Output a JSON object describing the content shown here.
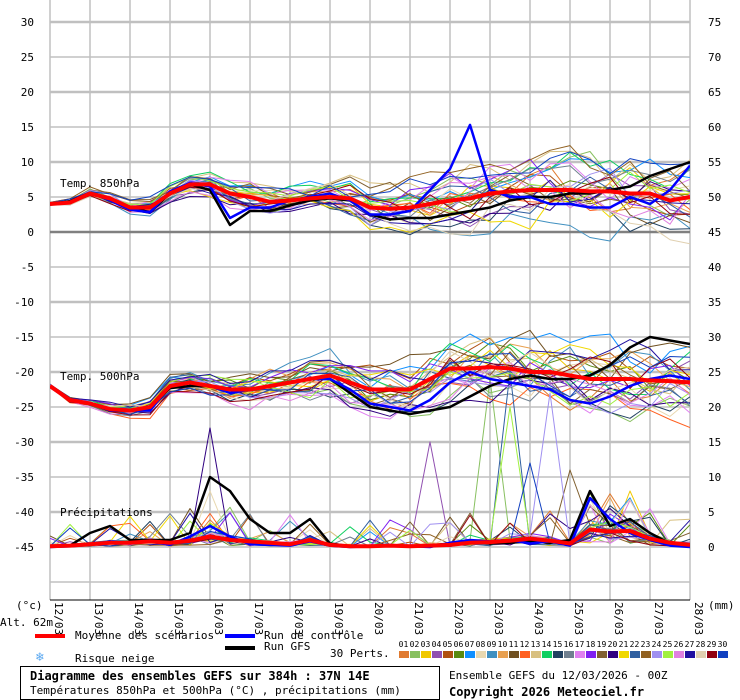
{
  "chart_data": {
    "type": "line",
    "title": "Diagramme des ensembles GEFS sur 384h : 37N 14E",
    "subtitle": "Températures 850hPa et 500hPa (°C) , précipitations (mm)",
    "run_info": "Ensemble GEFS du 12/03/2026 - 00Z",
    "copyright": "Copyright 2026 Meteociel.fr",
    "altitude": "Alt. 62m",
    "ylabel_left": "(°c)",
    "ylabel_right": "(mm)",
    "x_ticks": [
      "12/03",
      "13/03",
      "14/03",
      "15/03",
      "16/03",
      "17/03",
      "18/03",
      "19/03",
      "20/03",
      "21/03",
      "22/03",
      "23/03",
      "24/03",
      "25/03",
      "26/03",
      "27/03",
      "28/03"
    ],
    "x_step_days": 0.5,
    "y_left_ticks": [
      "30",
      "25",
      "20",
      "15",
      "10",
      "5",
      "0",
      "-5",
      "-10",
      "-15",
      "-20",
      "-25",
      "-30",
      "-35",
      "-40",
      "-45"
    ],
    "y_right_ticks": [
      "75",
      "70",
      "65",
      "60",
      "55",
      "50",
      "45",
      "40",
      "35",
      "30",
      "25",
      "20",
      "15",
      "10",
      "5",
      "0"
    ],
    "ylim_left": [
      -45,
      30
    ],
    "ylim_right": [
      0,
      75
    ],
    "section_labels": {
      "t850": "Temp. 850hPa",
      "t500": "Temp. 500hPa",
      "precip": "Précipitations"
    },
    "legend": {
      "mean": "Moyenne des scénarios",
      "control": "Run de contrôle",
      "gfs": "Run GFS",
      "snow": "Risque neige",
      "perts": "30 Perts."
    },
    "colors": {
      "mean": "#ff0000",
      "control": "#0000ff",
      "gfs": "#000000",
      "snow": "#5aa8f0"
    },
    "series": {
      "t850_mean": [
        4,
        4.2,
        5.5,
        4.8,
        3.5,
        3.5,
        5.5,
        6.8,
        6.8,
        5.5,
        5,
        4.3,
        4.5,
        4.8,
        5,
        4.8,
        3.5,
        3.3,
        3.5,
        4,
        4.5,
        4.8,
        5.5,
        5.8,
        6,
        6,
        6,
        5.8,
        5.8,
        5.5,
        5.5,
        4.5,
        5
      ],
      "t850_control": [
        4,
        4.3,
        5.6,
        4.5,
        3.2,
        2.8,
        5.8,
        7,
        6.5,
        2,
        3.5,
        3.5,
        4.5,
        5,
        5.5,
        4.5,
        2.5,
        2.5,
        3,
        6,
        9,
        15.3,
        6,
        5,
        5,
        4,
        4,
        3.5,
        3.5,
        5,
        4,
        6,
        9.5
      ],
      "t850_gfs": [
        4,
        4.4,
        5.6,
        4.5,
        3.5,
        2.8,
        5.5,
        6.8,
        6,
        1,
        3,
        3,
        3.8,
        4.5,
        4.8,
        4.5,
        2.5,
        1.8,
        2,
        2,
        2.5,
        3,
        3.5,
        4.5,
        5,
        5,
        5.5,
        5.5,
        6,
        6.5,
        8,
        9,
        10
      ],
      "t500_mean": [
        -22,
        -24,
        -24.5,
        -25.3,
        -25.5,
        -25,
        -22,
        -21.5,
        -22,
        -22.5,
        -22.5,
        -22,
        -21.5,
        -21,
        -20.5,
        -21.5,
        -22.5,
        -22.5,
        -22.5,
        -21,
        -19.5,
        -19.5,
        -19.3,
        -19.5,
        -20,
        -20,
        -20.5,
        -21,
        -21,
        -21,
        -21.2,
        -21.3,
        -21.5
      ],
      "t500_control": [
        -22,
        -24,
        -24.5,
        -25.5,
        -25.5,
        -25.5,
        -22,
        -21.5,
        -22,
        -23,
        -22.5,
        -22,
        -21.5,
        -21,
        -21,
        -22.5,
        -24.5,
        -25,
        -25.5,
        -24,
        -21.5,
        -20,
        -21,
        -21.5,
        -22,
        -22.5,
        -24,
        -24.5,
        -23.5,
        -22,
        -21,
        -20.5,
        -21
      ],
      "t500_gfs": [
        -22,
        -24,
        -24.5,
        -25.5,
        -25.5,
        -25.2,
        -22.3,
        -22,
        -22,
        -22.5,
        -22.5,
        -22,
        -21.5,
        -21,
        -21,
        -23,
        -25,
        -25.5,
        -26,
        -25.5,
        -25,
        -23.5,
        -22,
        -21,
        -20.5,
        -21,
        -21,
        -20.5,
        -19,
        -16.5,
        -15,
        -15.5,
        -16
      ],
      "precip_mean": [
        0.1,
        0.2,
        0.4,
        0.6,
        0.6,
        0.8,
        0.6,
        0.9,
        1.5,
        1,
        0.8,
        0.6,
        0.4,
        1,
        0.3,
        0.1,
        0.1,
        0.2,
        0.1,
        0.2,
        0.3,
        0.6,
        0.7,
        0.9,
        1.2,
        0.9,
        0.5,
        2.5,
        2.2,
        2.3,
        1.2,
        0.6,
        0.3
      ],
      "precip_control": [
        0,
        0.1,
        0.3,
        0.8,
        0.5,
        0.8,
        0.3,
        1.5,
        3,
        1.5,
        0.4,
        0.3,
        0.2,
        0.8,
        0.2,
        0,
        0.1,
        0.3,
        0.1,
        0,
        0.6,
        1,
        0.8,
        1,
        0.5,
        0.8,
        0.2,
        7,
        4,
        2,
        1,
        0.2,
        0
      ],
      "precip_gfs": [
        0.1,
        0.2,
        2,
        3,
        1,
        1,
        1,
        2,
        10,
        8,
        4,
        2,
        2,
        4,
        0.5,
        0.1,
        0.1,
        0.2,
        0.1,
        0.2,
        0.5,
        0.8,
        0.5,
        0.6,
        0.8,
        0.6,
        1,
        8,
        3,
        4,
        2,
        0.5,
        0.2
      ]
    },
    "perturbations": {
      "count": 30,
      "labels": [
        "01",
        "02",
        "03",
        "04",
        "05",
        "06",
        "07",
        "08",
        "09",
        "10",
        "11",
        "12",
        "13",
        "14",
        "15",
        "16",
        "17",
        "18",
        "19",
        "20",
        "21",
        "22",
        "23",
        "24",
        "25",
        "26",
        "27",
        "28",
        "29",
        "30"
      ],
      "colors": [
        "#e07a30",
        "#88c060",
        "#f0c800",
        "#9050b0",
        "#b05010",
        "#5a8a10",
        "#1090ff",
        "#e8d8b0",
        "#4090c0",
        "#e8a050",
        "#705020",
        "#ff6020",
        "#d8c080",
        "#10d060",
        "#204060",
        "#708090",
        "#e080f0",
        "#8020f0",
        "#806030",
        "#300080",
        "#f0d800",
        "#3060a0",
        "#906020",
        "#a090f0",
        "#a0f040",
        "#e080e0",
        "#2010a0",
        "#e0d0b0",
        "#900010",
        "#1040c0"
      ],
      "t850_spread": [
        0.3,
        0.5,
        0.7,
        0.9,
        1,
        1.2,
        1.4,
        1.6,
        1.8,
        2,
        2,
        2,
        2,
        2.2,
        2.5,
        2.8,
        3,
        3.2,
        3.5,
        3.8,
        4,
        4.2,
        4.4,
        4.5,
        4.6,
        4.7,
        4.8,
        4.9,
        5,
        5,
        5,
        5,
        5
      ],
      "t500_spread": [
        0.3,
        0.5,
        0.7,
        0.9,
        1,
        1.2,
        1.4,
        1.6,
        1.8,
        2,
        2.2,
        2.4,
        2.6,
        2.8,
        3,
        3.2,
        3.4,
        3.6,
        3.8,
        4,
        4.2,
        4.3,
        4.4,
        4.5,
        4.6,
        4.7,
        4.8,
        4.9,
        5,
        5,
        5,
        5,
        5
      ],
      "precip_peaks": [
        {
          "member": 20,
          "step": 8,
          "mm": 17
        },
        {
          "member": 4,
          "step": 19,
          "mm": 15
        },
        {
          "member": 2,
          "step": 22,
          "mm": 24
        },
        {
          "member": 22,
          "step": 23,
          "mm": 25
        },
        {
          "member": 25,
          "step": 23,
          "mm": 20
        },
        {
          "member": 24,
          "step": 25,
          "mm": 22
        },
        {
          "member": 30,
          "step": 24,
          "mm": 12
        },
        {
          "member": 19,
          "step": 26,
          "mm": 11
        },
        {
          "member": 8,
          "step": 8,
          "mm": 8
        }
      ]
    }
  }
}
